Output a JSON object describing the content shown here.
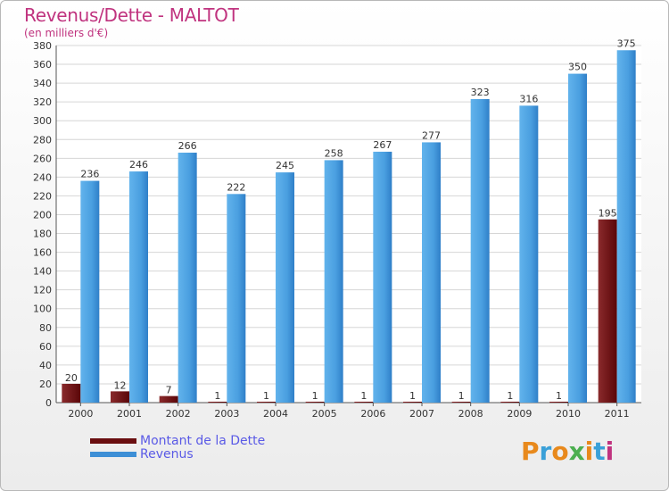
{
  "header": {
    "title": "Revenus/Dette - MALTOT",
    "subtitle": "(en milliers d'€)"
  },
  "legend": {
    "dette_label": "Montant de la Dette",
    "revenus_label": "Revenus"
  },
  "logo": {
    "text": "Proxiti"
  },
  "colors": {
    "dette": "#6a0e10",
    "revenus": "#3d8fd6",
    "title": "#c0337f",
    "legend_text": "#5a5ae6"
  },
  "chart_data": {
    "type": "bar",
    "title": "Revenus/Dette - MALTOT",
    "subtitle": "(en milliers d'€)",
    "xlabel": "",
    "ylabel": "",
    "categories": [
      "2000",
      "2001",
      "2002",
      "2003",
      "2004",
      "2005",
      "2006",
      "2007",
      "2008",
      "2009",
      "2010",
      "2011"
    ],
    "series": [
      {
        "name": "Montant de la Dette",
        "values": [
          20,
          12,
          7,
          1,
          1,
          1,
          1,
          1,
          1,
          1,
          1,
          195
        ]
      },
      {
        "name": "Revenus",
        "values": [
          236,
          246,
          266,
          222,
          245,
          258,
          267,
          277,
          323,
          316,
          350,
          375
        ]
      }
    ],
    "ylim": [
      0,
      380
    ],
    "yticks": [
      0,
      20,
      40,
      60,
      80,
      100,
      120,
      140,
      160,
      180,
      200,
      220,
      240,
      260,
      280,
      300,
      320,
      340,
      360,
      380
    ],
    "grid": true,
    "legend_position": "bottom-left"
  }
}
